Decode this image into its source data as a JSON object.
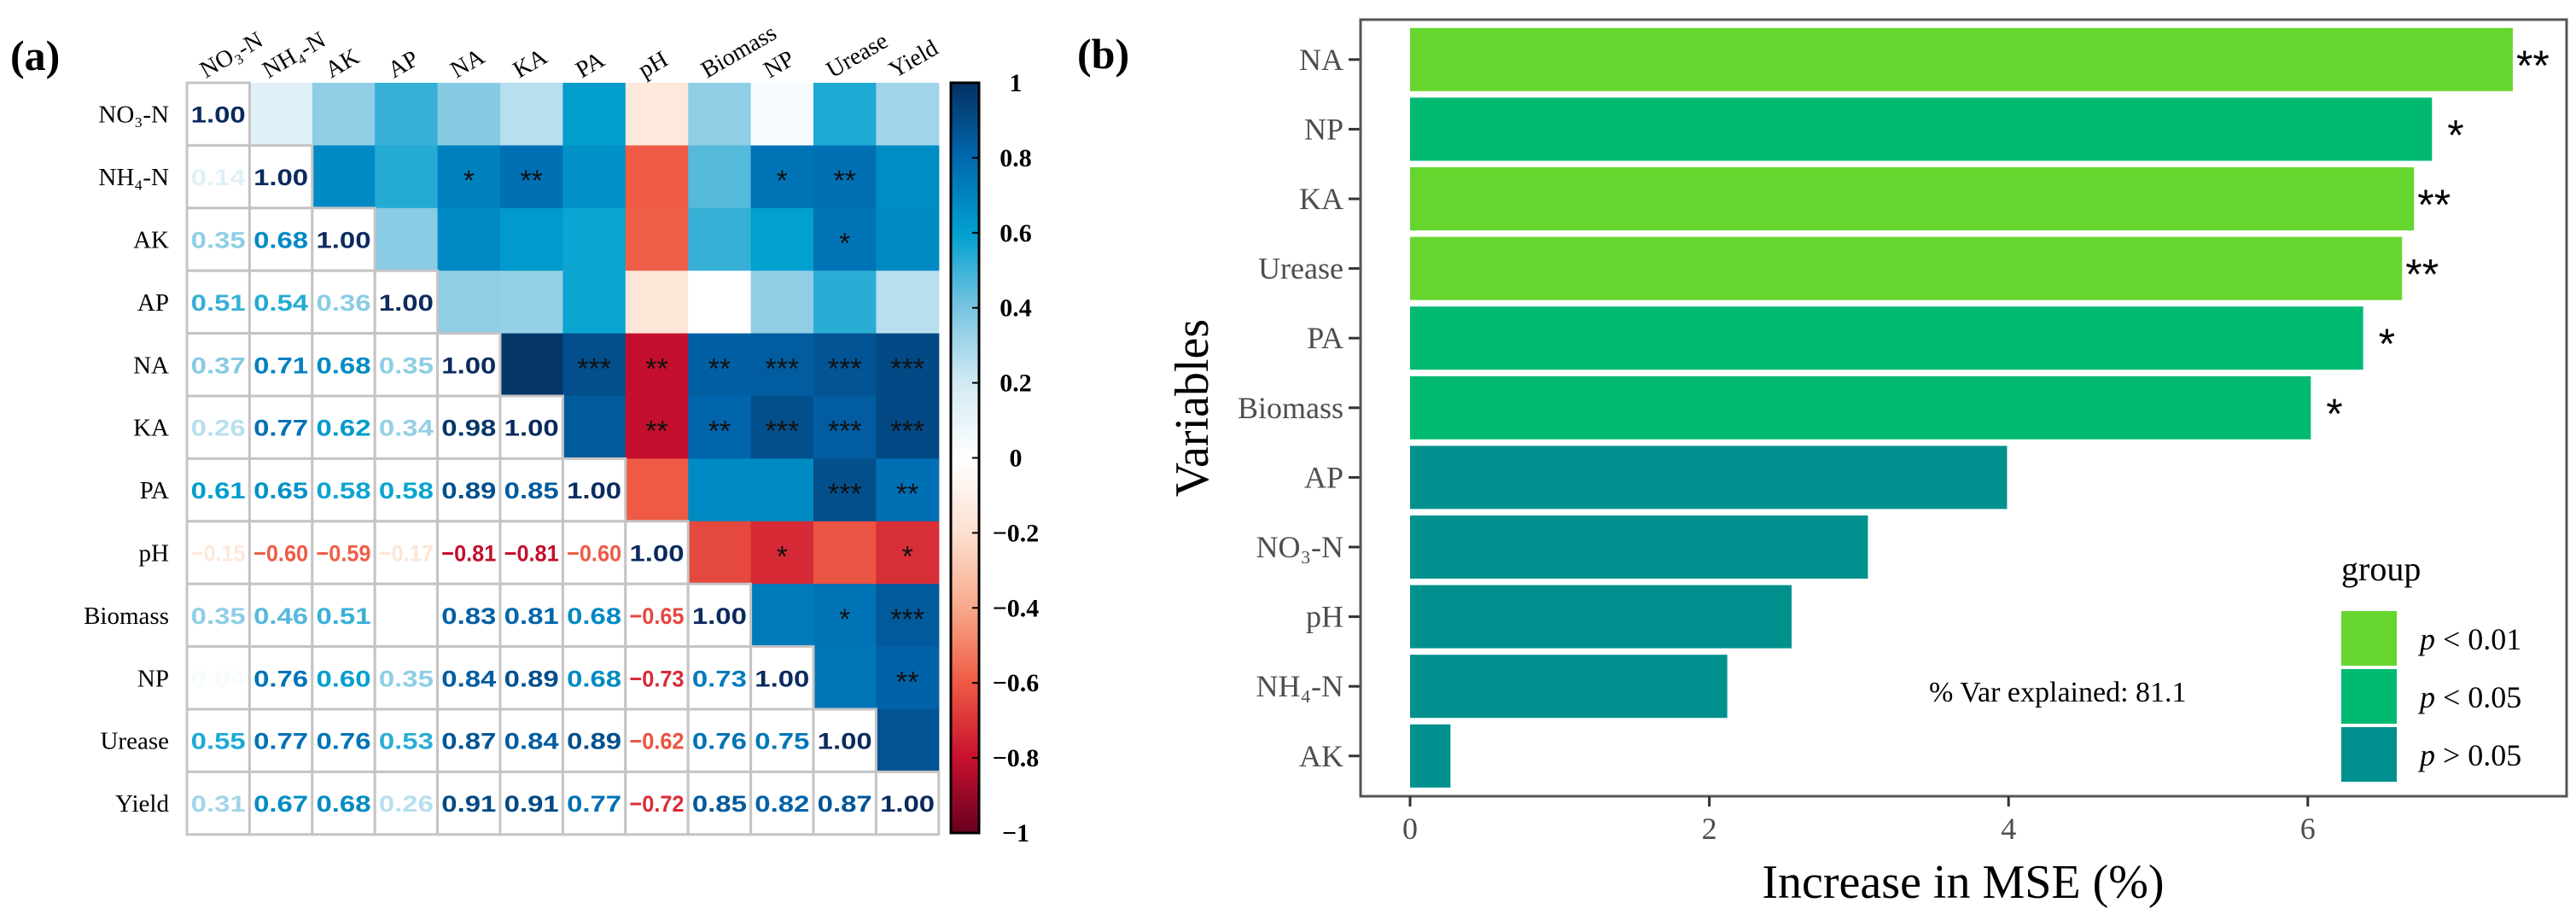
{
  "chart_data": [
    {
      "type": "heatmap",
      "panel_label": "(a)",
      "variables": [
        "NO₃-N",
        "NH₄-N",
        "AK",
        "AP",
        "NA",
        "KA",
        "PA",
        "pH",
        "Biomass",
        "NP",
        "Urease",
        "Yield"
      ],
      "lower_triangle": [
        [
          1.0
        ],
        [
          0.14,
          1.0
        ],
        [
          0.35,
          0.68,
          1.0
        ],
        [
          0.51,
          0.54,
          0.36,
          1.0
        ],
        [
          0.37,
          0.71,
          0.68,
          0.35,
          1.0
        ],
        [
          0.26,
          0.77,
          0.62,
          0.34,
          0.98,
          1.0
        ],
        [
          0.61,
          0.65,
          0.58,
          0.58,
          0.89,
          0.85,
          1.0
        ],
        [
          -0.15,
          -0.6,
          -0.59,
          -0.17,
          -0.81,
          -0.81,
          -0.6,
          1.0
        ],
        [
          0.35,
          0.46,
          0.51,
          0.0,
          0.83,
          0.81,
          0.68,
          -0.65,
          1.0
        ],
        [
          0.04,
          0.76,
          0.6,
          0.35,
          0.84,
          0.89,
          0.68,
          -0.73,
          0.73,
          1.0
        ],
        [
          0.55,
          0.77,
          0.76,
          0.53,
          0.87,
          0.84,
          0.89,
          -0.62,
          0.76,
          0.75,
          1.0
        ],
        [
          0.31,
          0.67,
          0.68,
          0.26,
          0.91,
          0.91,
          0.77,
          -0.72,
          0.85,
          0.82,
          0.87,
          1.0
        ]
      ],
      "upper_significance": [
        [
          "",
          "",
          "",
          "",
          "",
          "",
          "",
          "",
          "",
          "",
          "",
          ""
        ],
        [
          "",
          "",
          "",
          "",
          "*",
          "**",
          "",
          "",
          "",
          "*",
          "**",
          ""
        ],
        [
          "",
          "",
          "",
          "",
          "",
          "",
          "",
          "",
          "",
          "",
          "*",
          ""
        ],
        [
          "",
          "",
          "",
          "",
          "",
          "",
          "",
          "",
          "",
          "",
          "",
          ""
        ],
        [
          "",
          "",
          "",
          "",
          "",
          "",
          "***",
          "**",
          "**",
          "***",
          "***",
          "***"
        ],
        [
          "",
          "",
          "",
          "",
          "",
          "",
          "",
          "**",
          "**",
          "***",
          "***",
          "***"
        ],
        [
          "",
          "",
          "",
          "",
          "",
          "",
          "",
          "",
          "",
          "",
          "***",
          "**"
        ],
        [
          "",
          "",
          "",
          "",
          "",
          "",
          "",
          "",
          "",
          "*",
          "",
          "*"
        ],
        [
          "",
          "",
          "",
          "",
          "",
          "",
          "",
          "",
          "",
          "",
          "*",
          "***"
        ],
        [
          "",
          "",
          "",
          "",
          "",
          "",
          "",
          "",
          "",
          "",
          "",
          "**"
        ],
        [
          "",
          "",
          "",
          "",
          "",
          "",
          "",
          "",
          "",
          "",
          "",
          ""
        ],
        [
          "",
          "",
          "",
          "",
          "",
          "",
          "",
          "",
          "",
          "",
          "",
          ""
        ]
      ],
      "colorbar": {
        "range": [
          -1,
          1
        ],
        "ticks": [
          "1",
          "0.8",
          "0.6",
          "0.4",
          "0.2",
          "0",
          "−0.2",
          "−0.4",
          "−0.6",
          "−0.8",
          "−1"
        ],
        "tick_values": [
          1,
          0.8,
          0.6,
          0.4,
          0.2,
          0,
          -0.2,
          -0.4,
          -0.6,
          -0.8,
          -1
        ],
        "stops": [
          {
            "v": -1,
            "c": "#67001f"
          },
          {
            "v": -0.8,
            "c": "#c8102e"
          },
          {
            "v": -0.6,
            "c": "#ef5a44"
          },
          {
            "v": -0.4,
            "c": "#f8a98a"
          },
          {
            "v": -0.2,
            "c": "#fde0d0"
          },
          {
            "v": 0,
            "c": "#ffffff"
          },
          {
            "v": 0.2,
            "c": "#d2eaf4"
          },
          {
            "v": 0.4,
            "c": "#78c4e0"
          },
          {
            "v": 0.6,
            "c": "#00a0cf"
          },
          {
            "v": 0.8,
            "c": "#0068b0"
          },
          {
            "v": 1,
            "c": "#053061"
          }
        ]
      }
    },
    {
      "type": "bar",
      "orientation": "horizontal",
      "panel_label": "(b)",
      "categories": [
        "NA",
        "NP",
        "KA",
        "Urease",
        "PA",
        "Biomass",
        "AP",
        "NO₃-N",
        "pH",
        "NH₄-N",
        "AK"
      ],
      "values": [
        7.37,
        6.83,
        6.71,
        6.63,
        6.37,
        6.02,
        3.99,
        3.06,
        2.55,
        2.12,
        0.27
      ],
      "groups": [
        "p < 0.01",
        "p < 0.05",
        "p < 0.01",
        "p < 0.01",
        "p < 0.05",
        "p < 0.05",
        "p > 0.05",
        "p > 0.05",
        "p > 0.05",
        "p > 0.05",
        "p > 0.05"
      ],
      "significance": [
        "**",
        "*",
        "**",
        "**",
        "*",
        "*",
        "",
        "",
        "",
        "",
        ""
      ],
      "xlabel": "Increase in MSE (%)",
      "ylabel": "Variables",
      "xlim": [
        -0.37,
        7.9
      ],
      "xticks": [
        0,
        2,
        4,
        6
      ],
      "xtick_labels": [
        "0",
        "2",
        "4",
        "6"
      ],
      "annotation": "% Var explained: 81.1",
      "legend": {
        "title": "group",
        "position": "bottom-right",
        "entries": [
          {
            "symbol": "p",
            "label": " < 0.01",
            "color": "#66d62f"
          },
          {
            "symbol": "p",
            "label": " < 0.05",
            "color": "#00ba72"
          },
          {
            "symbol": "p",
            "label": " > 0.05",
            "color": "#00918e"
          }
        ]
      }
    }
  ]
}
